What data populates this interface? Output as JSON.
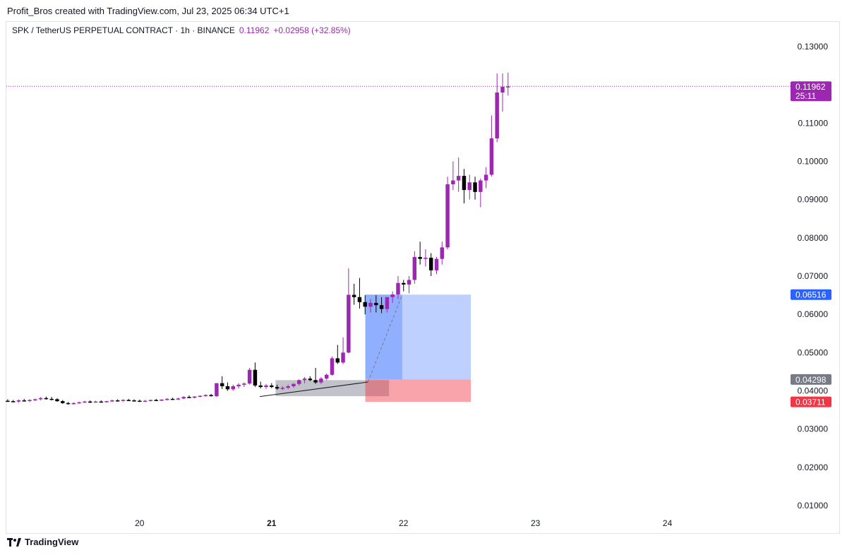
{
  "attribution": "Profit_Bros created with TradingView.com, Jul 23, 2025 06:34 UTC+1",
  "legend": {
    "symbol": "SPK / TetherUS PERPETUAL CONTRACT · 1h · BINANCE",
    "price": "0.11962",
    "change": "+0.02958 (+32.85%)"
  },
  "logo": {
    "text": "TradingView",
    "icon": "tradingview-logo-icon"
  },
  "colors": {
    "up": "#9c27b0",
    "down": "#000000",
    "target": "#2962ff",
    "stop": "#f23645",
    "entry": "#787b86"
  },
  "chart_data": {
    "type": "candlestick",
    "interval": "1h",
    "ylim": [
      0.005,
      0.135
    ],
    "y_ticks": [
      "0.13000",
      "0.11000",
      "0.10000",
      "0.09000",
      "0.08000",
      "0.07000",
      "0.06000",
      "0.05000",
      "0.04000",
      "0.03000",
      "0.02000",
      "0.01000"
    ],
    "x_ticks": [
      {
        "label": "20",
        "day": 20,
        "bold": false
      },
      {
        "label": "21",
        "day": 21,
        "bold": true
      },
      {
        "label": "22",
        "day": 22,
        "bold": false
      },
      {
        "label": "23",
        "day": 23,
        "bold": false
      },
      {
        "label": "24",
        "day": 24,
        "bold": false
      }
    ],
    "candle_step_days": 0.04167,
    "first_candle_day": 19.0,
    "x_day_range": [
      18.99,
      24.89
    ],
    "candles": [
      [
        0.0374,
        0.0378,
        0.0371,
        0.0373
      ],
      [
        0.0373,
        0.0376,
        0.037,
        0.0372
      ],
      [
        0.0372,
        0.0377,
        0.0369,
        0.0375
      ],
      [
        0.0375,
        0.0379,
        0.0372,
        0.0374
      ],
      [
        0.0374,
        0.0378,
        0.0371,
        0.0376
      ],
      [
        0.0376,
        0.038,
        0.0373,
        0.0378
      ],
      [
        0.0378,
        0.0384,
        0.0375,
        0.0381
      ],
      [
        0.0381,
        0.0385,
        0.0377,
        0.0379
      ],
      [
        0.0379,
        0.0384,
        0.0375,
        0.0378
      ],
      [
        0.0378,
        0.0381,
        0.0371,
        0.0373
      ],
      [
        0.0373,
        0.0376,
        0.0366,
        0.0368
      ],
      [
        0.0368,
        0.0371,
        0.0364,
        0.0366
      ],
      [
        0.0366,
        0.037,
        0.0364,
        0.0368
      ],
      [
        0.0368,
        0.0372,
        0.0366,
        0.037
      ],
      [
        0.037,
        0.0374,
        0.0368,
        0.0372
      ],
      [
        0.0372,
        0.0375,
        0.0368,
        0.0371
      ],
      [
        0.0371,
        0.0374,
        0.0369,
        0.0372
      ],
      [
        0.0372,
        0.0375,
        0.0369,
        0.0371
      ],
      [
        0.0371,
        0.0374,
        0.0369,
        0.0373
      ],
      [
        0.0373,
        0.0377,
        0.0371,
        0.0375
      ],
      [
        0.0375,
        0.0378,
        0.0372,
        0.0374
      ],
      [
        0.0374,
        0.0378,
        0.0372,
        0.0376
      ],
      [
        0.0376,
        0.0379,
        0.0373,
        0.0375
      ],
      [
        0.0375,
        0.0378,
        0.0372,
        0.0374
      ],
      [
        0.0374,
        0.0377,
        0.0371,
        0.0373
      ],
      [
        0.0373,
        0.0376,
        0.0371,
        0.0374
      ],
      [
        0.0374,
        0.0377,
        0.0372,
        0.0376
      ],
      [
        0.0376,
        0.0379,
        0.0373,
        0.0375
      ],
      [
        0.0375,
        0.0378,
        0.0373,
        0.0377
      ],
      [
        0.0377,
        0.0381,
        0.0375,
        0.0379
      ],
      [
        0.0379,
        0.0382,
        0.0377,
        0.0378
      ],
      [
        0.0378,
        0.0382,
        0.0376,
        0.038
      ],
      [
        0.038,
        0.0386,
        0.0378,
        0.0384
      ],
      [
        0.0384,
        0.0388,
        0.0381,
        0.0382
      ],
      [
        0.0382,
        0.0386,
        0.038,
        0.0385
      ],
      [
        0.0385,
        0.0388,
        0.0383,
        0.0387
      ],
      [
        0.0387,
        0.0391,
        0.0385,
        0.0389
      ],
      [
        0.0389,
        0.0392,
        0.0385,
        0.0386
      ],
      [
        0.0386,
        0.042,
        0.0384,
        0.042
      ],
      [
        0.042,
        0.0438,
        0.0405,
        0.0412
      ],
      [
        0.0412,
        0.0422,
        0.04,
        0.0404
      ],
      [
        0.0404,
        0.0416,
        0.04,
        0.0412
      ],
      [
        0.0412,
        0.042,
        0.0406,
        0.0416
      ],
      [
        0.0416,
        0.0422,
        0.041,
        0.0419
      ],
      [
        0.0419,
        0.046,
        0.0416,
        0.0455
      ],
      [
        0.0455,
        0.0474,
        0.041,
        0.0414
      ],
      [
        0.0414,
        0.0424,
        0.0406,
        0.041
      ],
      [
        0.041,
        0.0418,
        0.0405,
        0.0414
      ],
      [
        0.0414,
        0.042,
        0.0407,
        0.041
      ],
      [
        0.041,
        0.0416,
        0.0403,
        0.0406
      ],
      [
        0.0406,
        0.0412,
        0.0402,
        0.0408
      ],
      [
        0.0408,
        0.0416,
        0.0404,
        0.0412
      ],
      [
        0.0412,
        0.042,
        0.0408,
        0.0418
      ],
      [
        0.0418,
        0.043,
        0.0414,
        0.0428
      ],
      [
        0.0428,
        0.0436,
        0.042,
        0.0432
      ],
      [
        0.0432,
        0.0438,
        0.0425,
        0.0428
      ],
      [
        0.0428,
        0.046,
        0.0418,
        0.0422
      ],
      [
        0.0422,
        0.0436,
        0.0418,
        0.0432
      ],
      [
        0.0432,
        0.0445,
        0.0428,
        0.0442
      ],
      [
        0.0442,
        0.049,
        0.044,
        0.0485
      ],
      [
        0.0485,
        0.052,
        0.047,
        0.0474
      ],
      [
        0.0474,
        0.054,
        0.047,
        0.05
      ],
      [
        0.05,
        0.072,
        0.0498,
        0.0651
      ],
      [
        0.0651,
        0.068,
        0.0625,
        0.0645
      ],
      [
        0.0645,
        0.0695,
        0.0615,
        0.0632
      ],
      [
        0.0632,
        0.065,
        0.06,
        0.062
      ],
      [
        0.062,
        0.064,
        0.0605,
        0.063
      ],
      [
        0.063,
        0.065,
        0.0605,
        0.0624
      ],
      [
        0.0624,
        0.0645,
        0.0603,
        0.0614
      ],
      [
        0.0614,
        0.064,
        0.0605,
        0.0645
      ],
      [
        0.0645,
        0.066,
        0.063,
        0.0652
      ],
      [
        0.0652,
        0.07,
        0.064,
        0.0682
      ],
      [
        0.0682,
        0.069,
        0.066,
        0.0678
      ],
      [
        0.0678,
        0.07,
        0.0655,
        0.069
      ],
      [
        0.069,
        0.0765,
        0.068,
        0.075
      ],
      [
        0.075,
        0.079,
        0.073,
        0.0745
      ],
      [
        0.0745,
        0.077,
        0.0725,
        0.0748
      ],
      [
        0.0748,
        0.076,
        0.07,
        0.0715
      ],
      [
        0.0715,
        0.075,
        0.0705,
        0.0745
      ],
      [
        0.0745,
        0.079,
        0.073,
        0.0775
      ],
      [
        0.0775,
        0.096,
        0.077,
        0.094
      ],
      [
        0.094,
        0.1,
        0.0925,
        0.095
      ],
      [
        0.095,
        0.101,
        0.092,
        0.0962
      ],
      [
        0.0962,
        0.098,
        0.089,
        0.0925
      ],
      [
        0.0925,
        0.0965,
        0.09,
        0.0945
      ],
      [
        0.0945,
        0.096,
        0.09,
        0.092
      ],
      [
        0.092,
        0.0955,
        0.088,
        0.095
      ],
      [
        0.095,
        0.0985,
        0.093,
        0.0965
      ],
      [
        0.0965,
        0.112,
        0.096,
        0.106
      ],
      [
        0.106,
        0.123,
        0.105,
        0.118
      ],
      [
        0.118,
        0.123,
        0.113,
        0.1195
      ],
      [
        0.1195,
        0.1232,
        0.1172,
        0.1196
      ]
    ],
    "price_lines": [
      {
        "label": "0.11962",
        "sublabel": "25:11",
        "value": 0.11962,
        "color": "#9c27b0",
        "dotted_line": true
      },
      {
        "label": "0.06516",
        "value": 0.06516,
        "color": "#2962ff"
      },
      {
        "label": "0.04298",
        "value": 0.04298,
        "color": "#787b86"
      },
      {
        "label": "0.03711",
        "value": 0.03711,
        "color": "#f23645"
      }
    ],
    "positions": {
      "long_target": {
        "x_day": [
          21.71,
          22.51
        ],
        "y": [
          0.04298,
          0.06516
        ],
        "color": "#2962ff"
      },
      "long_stop": {
        "x_day": [
          21.71,
          22.51
        ],
        "y": [
          0.03711,
          0.04298
        ],
        "color": "#f23645"
      },
      "entry_zone": {
        "x_day": [
          21.03,
          21.89
        ],
        "y": [
          0.0386,
          0.0428
        ],
        "color": "#787b86"
      }
    },
    "trend_line": {
      "from": [
        20.91,
        0.0385
      ],
      "to": [
        21.73,
        0.0423
      ]
    },
    "projection_line": {
      "from": [
        21.73,
        0.0423
      ],
      "to": [
        21.99,
        0.0651
      ]
    }
  }
}
